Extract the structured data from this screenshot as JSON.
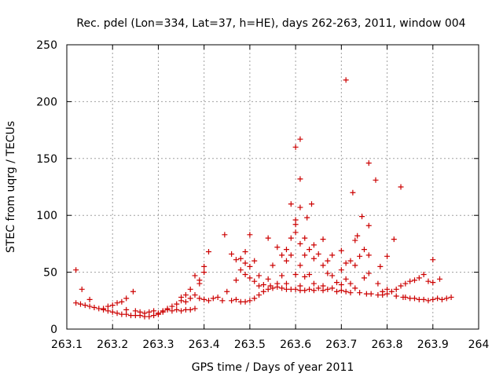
{
  "chart_data": {
    "type": "scatter",
    "title": "Rec. pdel (Lon=334, Lat=37, h=HE), days 262-263, 2011, window 004",
    "xlabel": "GPS time / Days of year 2011",
    "ylabel": "STEC from uqrg / TECUs",
    "xlim": [
      263.1,
      264
    ],
    "ylim": [
      0,
      250
    ],
    "x_ticks": [
      263.1,
      263.2,
      263.3,
      263.4,
      263.5,
      263.6,
      263.7,
      263.8,
      263.9,
      264
    ],
    "x_tick_labels": [
      "263.1",
      "263.2",
      "263.3",
      "263.4",
      "263.5",
      "263.6",
      "263.7",
      "263.8",
      "263.9",
      "264"
    ],
    "y_ticks": [
      0,
      50,
      100,
      150,
      200,
      250
    ],
    "y_tick_labels": [
      "0",
      "50",
      "100",
      "150",
      "200",
      "250"
    ],
    "grid": true,
    "marker": "+",
    "color": "#cc0000",
    "series": [
      {
        "name": "STEC",
        "points": [
          [
            263.12,
            52
          ],
          [
            263.12,
            23
          ],
          [
            263.13,
            22
          ],
          [
            263.133,
            35
          ],
          [
            263.14,
            21
          ],
          [
            263.15,
            20
          ],
          [
            263.15,
            26
          ],
          [
            263.16,
            19
          ],
          [
            263.17,
            18
          ],
          [
            263.18,
            17
          ],
          [
            263.18,
            18
          ],
          [
            263.19,
            16
          ],
          [
            263.19,
            20
          ],
          [
            263.2,
            15
          ],
          [
            263.2,
            21
          ],
          [
            263.21,
            14
          ],
          [
            263.21,
            23
          ],
          [
            263.22,
            13
          ],
          [
            263.22,
            24
          ],
          [
            263.23,
            13
          ],
          [
            263.23,
            27
          ],
          [
            263.23,
            17
          ],
          [
            263.24,
            12
          ],
          [
            263.245,
            33
          ],
          [
            263.25,
            12
          ],
          [
            263.25,
            16
          ],
          [
            263.26,
            12
          ],
          [
            263.26,
            15
          ],
          [
            263.27,
            11
          ],
          [
            263.27,
            14
          ],
          [
            263.28,
            11
          ],
          [
            263.28,
            15
          ],
          [
            263.29,
            12
          ],
          [
            263.29,
            16
          ],
          [
            263.3,
            13
          ],
          [
            263.3,
            14
          ],
          [
            263.31,
            15
          ],
          [
            263.31,
            16
          ],
          [
            263.32,
            17
          ],
          [
            263.32,
            18
          ],
          [
            263.33,
            16
          ],
          [
            263.33,
            20
          ],
          [
            263.34,
            17
          ],
          [
            263.34,
            22
          ],
          [
            263.35,
            16
          ],
          [
            263.35,
            25
          ],
          [
            263.35,
            28
          ],
          [
            263.36,
            17
          ],
          [
            263.36,
            24
          ],
          [
            263.36,
            30
          ],
          [
            263.37,
            17
          ],
          [
            263.37,
            27
          ],
          [
            263.37,
            35
          ],
          [
            263.38,
            18
          ],
          [
            263.38,
            47
          ],
          [
            263.38,
            30
          ],
          [
            263.39,
            27
          ],
          [
            263.39,
            43
          ],
          [
            263.39,
            40
          ],
          [
            263.4,
            26
          ],
          [
            263.4,
            50
          ],
          [
            263.4,
            55
          ],
          [
            263.41,
            25
          ],
          [
            263.41,
            68
          ],
          [
            263.42,
            27
          ],
          [
            263.43,
            28
          ],
          [
            263.44,
            25
          ],
          [
            263.445,
            83
          ],
          [
            263.45,
            33
          ],
          [
            263.46,
            25
          ],
          [
            263.46,
            66
          ],
          [
            263.47,
            26
          ],
          [
            263.47,
            43
          ],
          [
            263.47,
            61
          ],
          [
            263.48,
            24
          ],
          [
            263.48,
            62
          ],
          [
            263.48,
            52
          ],
          [
            263.49,
            24
          ],
          [
            263.49,
            68
          ],
          [
            263.49,
            48
          ],
          [
            263.49,
            58
          ],
          [
            263.5,
            25
          ],
          [
            263.5,
            83
          ],
          [
            263.5,
            45
          ],
          [
            263.5,
            55
          ],
          [
            263.51,
            27
          ],
          [
            263.51,
            42
          ],
          [
            263.51,
            60
          ],
          [
            263.52,
            30
          ],
          [
            263.52,
            38
          ],
          [
            263.52,
            47
          ],
          [
            263.53,
            33
          ],
          [
            263.53,
            39
          ],
          [
            263.54,
            35
          ],
          [
            263.54,
            44
          ],
          [
            263.54,
            80
          ],
          [
            263.545,
            38
          ],
          [
            263.55,
            56
          ],
          [
            263.55,
            36
          ],
          [
            263.56,
            72
          ],
          [
            263.56,
            40
          ],
          [
            263.56,
            37
          ],
          [
            263.57,
            65
          ],
          [
            263.57,
            47
          ],
          [
            263.57,
            36
          ],
          [
            263.58,
            60
          ],
          [
            263.58,
            70
          ],
          [
            263.58,
            40
          ],
          [
            263.58,
            35
          ],
          [
            263.59,
            80
          ],
          [
            263.59,
            110
          ],
          [
            263.59,
            65
          ],
          [
            263.59,
            35
          ],
          [
            263.6,
            160
          ],
          [
            263.6,
            96
          ],
          [
            263.6,
            92
          ],
          [
            263.6,
            85
          ],
          [
            263.6,
            48
          ],
          [
            263.6,
            35
          ],
          [
            263.61,
            167
          ],
          [
            263.61,
            132
          ],
          [
            263.61,
            107
          ],
          [
            263.61,
            75
          ],
          [
            263.61,
            56
          ],
          [
            263.61,
            38
          ],
          [
            263.61,
            34
          ],
          [
            263.62,
            80
          ],
          [
            263.62,
            65
          ],
          [
            263.62,
            46
          ],
          [
            263.62,
            34
          ],
          [
            263.625,
            98
          ],
          [
            263.63,
            70
          ],
          [
            263.63,
            48
          ],
          [
            263.63,
            35
          ],
          [
            263.635,
            110
          ],
          [
            263.64,
            74
          ],
          [
            263.64,
            62
          ],
          [
            263.64,
            40
          ],
          [
            263.64,
            34
          ],
          [
            263.65,
            66
          ],
          [
            263.65,
            36
          ],
          [
            263.66,
            79
          ],
          [
            263.66,
            56
          ],
          [
            263.66,
            38
          ],
          [
            263.66,
            34
          ],
          [
            263.67,
            60
          ],
          [
            263.67,
            49
          ],
          [
            263.67,
            35
          ],
          [
            263.68,
            65
          ],
          [
            263.68,
            47
          ],
          [
            263.68,
            36
          ],
          [
            263.69,
            41
          ],
          [
            263.69,
            33
          ],
          [
            263.7,
            69
          ],
          [
            263.7,
            52
          ],
          [
            263.7,
            39
          ],
          [
            263.7,
            34
          ],
          [
            263.71,
            219
          ],
          [
            263.71,
            58
          ],
          [
            263.71,
            44
          ],
          [
            263.71,
            33
          ],
          [
            263.72,
            60
          ],
          [
            263.72,
            40
          ],
          [
            263.72,
            32
          ],
          [
            263.725,
            120
          ],
          [
            263.73,
            78
          ],
          [
            263.73,
            56
          ],
          [
            263.73,
            36
          ],
          [
            263.735,
            82
          ],
          [
            263.74,
            64
          ],
          [
            263.74,
            32
          ],
          [
            263.745,
            99
          ],
          [
            263.75,
            70
          ],
          [
            263.75,
            45
          ],
          [
            263.755,
            31
          ],
          [
            263.76,
            146
          ],
          [
            263.76,
            91
          ],
          [
            263.76,
            65
          ],
          [
            263.76,
            49
          ],
          [
            263.765,
            31
          ],
          [
            263.775,
            131
          ],
          [
            263.78,
            40
          ],
          [
            263.78,
            30
          ],
          [
            263.785,
            55
          ],
          [
            263.79,
            33
          ],
          [
            263.79,
            30
          ],
          [
            263.8,
            64
          ],
          [
            263.8,
            35
          ],
          [
            263.8,
            31
          ],
          [
            263.81,
            33
          ],
          [
            263.815,
            79
          ],
          [
            263.82,
            35
          ],
          [
            263.82,
            29
          ],
          [
            263.83,
            125
          ],
          [
            263.83,
            38
          ],
          [
            263.835,
            28
          ],
          [
            263.84,
            40
          ],
          [
            263.84,
            28
          ],
          [
            263.85,
            42
          ],
          [
            263.85,
            27
          ],
          [
            263.86,
            43
          ],
          [
            263.86,
            27
          ],
          [
            263.87,
            45
          ],
          [
            263.87,
            26
          ],
          [
            263.88,
            48
          ],
          [
            263.88,
            26
          ],
          [
            263.89,
            42
          ],
          [
            263.89,
            25
          ],
          [
            263.9,
            61
          ],
          [
            263.9,
            41
          ],
          [
            263.9,
            26
          ],
          [
            263.91,
            27
          ],
          [
            263.915,
            44
          ],
          [
            263.92,
            26
          ],
          [
            263.93,
            27
          ],
          [
            263.94,
            28
          ]
        ]
      }
    ]
  }
}
